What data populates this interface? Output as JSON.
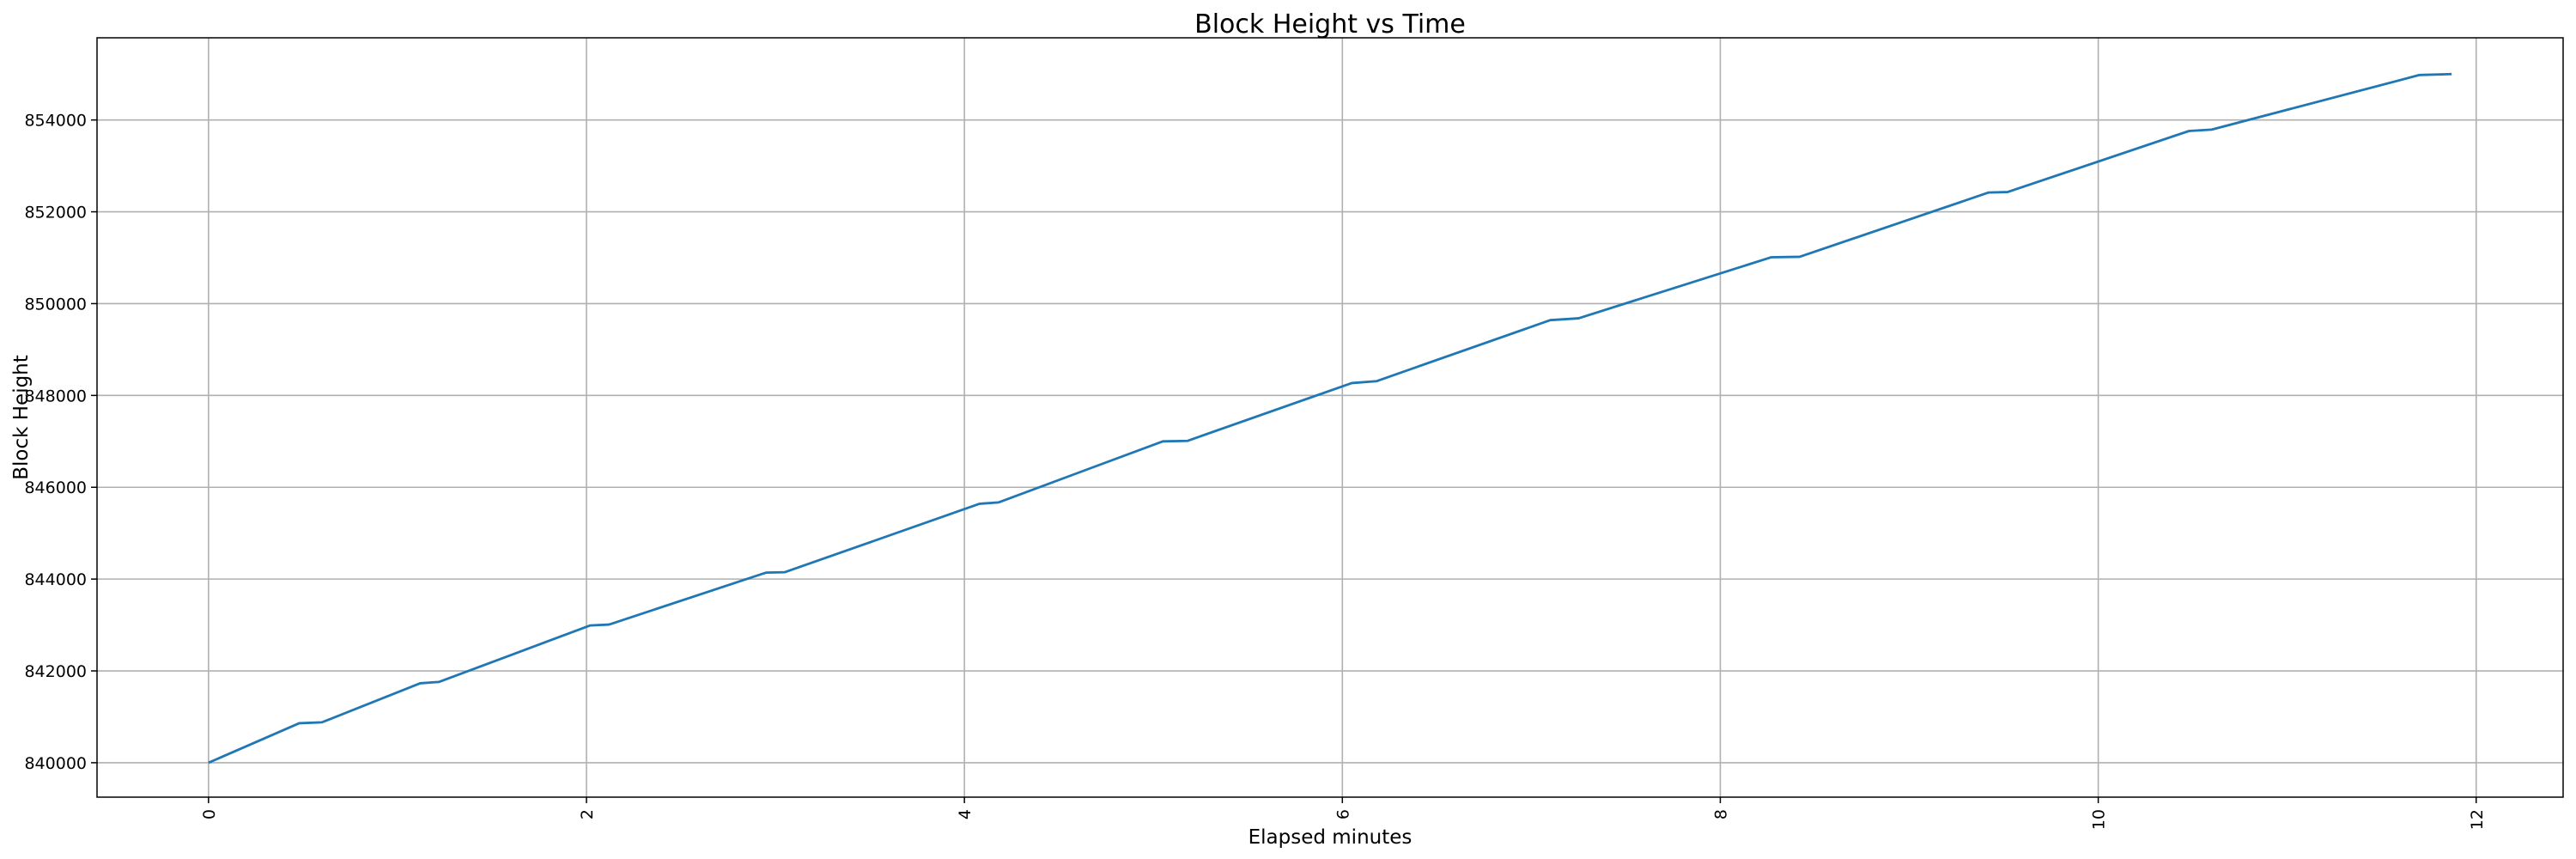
{
  "chart_data": {
    "type": "line",
    "title": "Block Height vs Time",
    "x_label": "Elapsed minutes",
    "y_label": "Block Height",
    "x": [
      0,
      0.48,
      0.6,
      1.12,
      1.22,
      2.02,
      2.12,
      2.95,
      3.05,
      4.08,
      4.18,
      5.05,
      5.18,
      6.05,
      6.18,
      7.1,
      7.25,
      8.27,
      8.42,
      9.42,
      9.52,
      10.48,
      10.6,
      11.7,
      11.87
    ],
    "values": [
      840000,
      840860,
      840880,
      841730,
      841760,
      842990,
      843010,
      844140,
      844150,
      845640,
      845670,
      847000,
      847010,
      848270,
      848310,
      849640,
      849680,
      851010,
      851020,
      852420,
      852430,
      853760,
      853790,
      854980,
      855000
    ],
    "color": "#1f77b4",
    "xlim": [
      -0.59,
      12.46
    ],
    "xticks": [
      0,
      2,
      4,
      6,
      8,
      10,
      12
    ],
    "ylim": [
      839250,
      855790
    ],
    "yticks": [
      840000,
      842000,
      844000,
      846000,
      848000,
      850000,
      852000,
      854000
    ],
    "grid": true
  }
}
